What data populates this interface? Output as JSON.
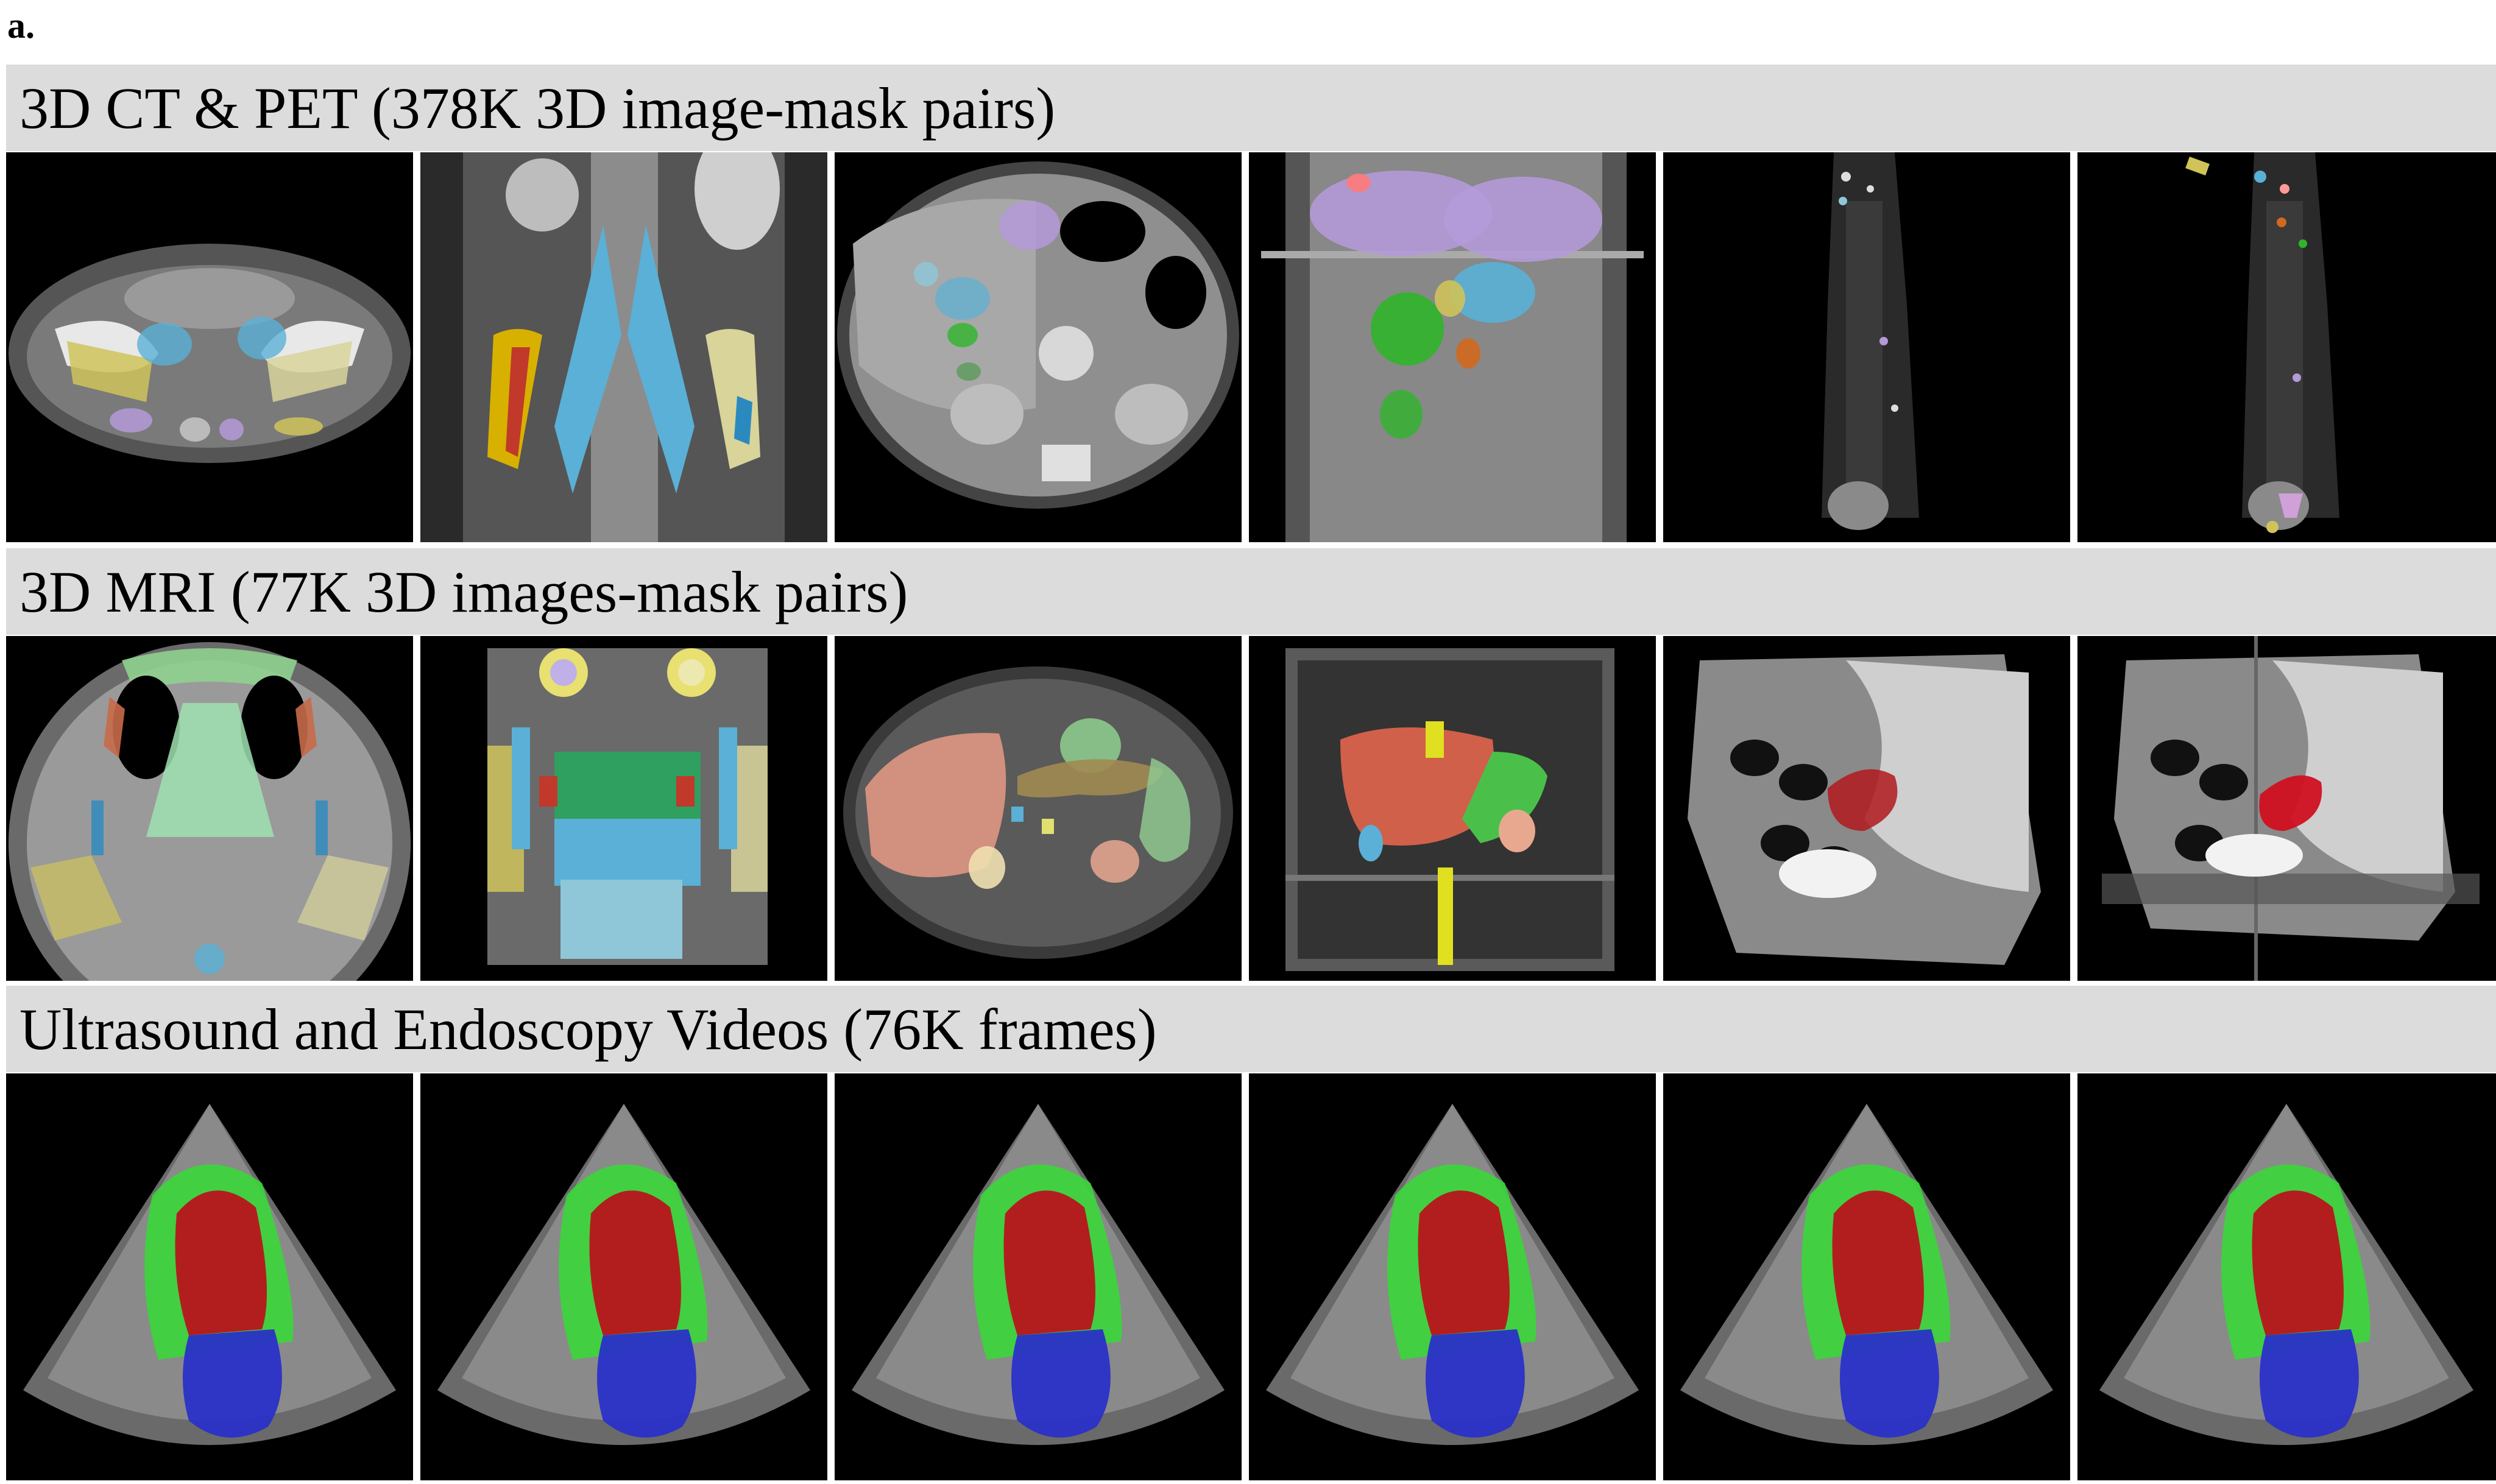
{
  "panel_label": "a.",
  "sections": [
    {
      "title": "3D CT & PET (378K 3D image-mask pairs)",
      "tiles": [
        "ct-axial-pelvis",
        "ct-coronal-psoas",
        "ct-axial-abdomen",
        "ct-3d-render",
        "pet-coronal",
        "pet-coronal-segmented"
      ]
    },
    {
      "title": "3D MRI (77K 3D images-mask pairs)",
      "tiles": [
        "mri-axial-head-neck",
        "mri-3d-head-neck",
        "mri-axial-abdomen",
        "mri-3d-abdomen",
        "mri-sagittal-pelvis",
        "mri-3d-sagittal-pelvis"
      ]
    },
    {
      "title": "Ultrasound and Endoscopy Videos (76K frames)",
      "tiles": [
        "echo-frame-1",
        "echo-frame-2",
        "echo-frame-3",
        "echo-frame-4",
        "echo-frame-5",
        "echo-frame-6"
      ]
    }
  ],
  "colors": {
    "band_background": "#dcdcdc",
    "mask_red": "#b0191c",
    "mask_green": "#2fb52a",
    "mask_blue": "#2628b8",
    "mask_lightblue": "#5ab0d6",
    "mask_yellow": "#cfc35a",
    "mask_lavender": "#b49ad8"
  }
}
